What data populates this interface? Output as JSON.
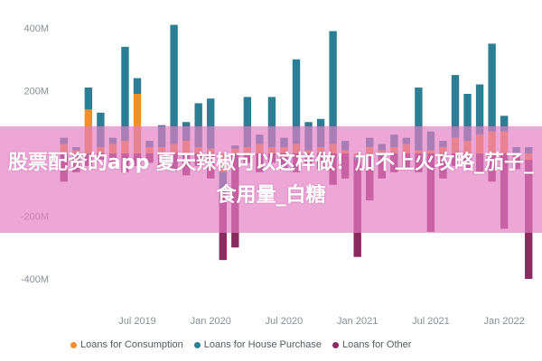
{
  "overlay": {
    "text": "股票配资的app 夏天辣椒可以这样做！加不上火攻略_茄子_食用量_白糖"
  },
  "colors": {
    "consumption": "#f28e2b",
    "house": "#2a7f94",
    "other": "#8b2a5e",
    "banner": "#e47ec4"
  },
  "chart_data": {
    "type": "bar",
    "stacked": true,
    "grid": false,
    "legend_position": "bottom",
    "ylim": [
      -450,
      480
    ],
    "yticks": [
      {
        "value": 400,
        "label": "400M"
      },
      {
        "value": 200,
        "label": "200M"
      },
      {
        "value": -200,
        "label": "-200M"
      },
      {
        "value": -400,
        "label": "-400M"
      }
    ],
    "xticks": [
      {
        "index": 6,
        "label": "Jul 2019"
      },
      {
        "index": 12,
        "label": "Jan 2020"
      },
      {
        "index": 18,
        "label": "Jul 2020"
      },
      {
        "index": 24,
        "label": "Jan 2021"
      },
      {
        "index": 30,
        "label": "Jul 2021"
      },
      {
        "index": 36,
        "label": "Jan 2022"
      }
    ],
    "categories": [
      "Jan 2019",
      "Feb 2019",
      "Mar 2019",
      "Apr 2019",
      "May 2019",
      "Jun 2019",
      "Jul 2019",
      "Aug 2019",
      "Sep 2019",
      "Oct 2019",
      "Nov 2019",
      "Dec 2019",
      "Jan 2020",
      "Feb 2020",
      "Mar 2020",
      "Apr 2020",
      "May 2020",
      "Jun 2020",
      "Jul 2020",
      "Aug 2020",
      "Sep 2020",
      "Oct 2020",
      "Nov 2020",
      "Dec 2020",
      "Jan 2021",
      "Feb 2021",
      "Mar 2021",
      "Apr 2021",
      "May 2021",
      "Jun 2021",
      "Jul 2021",
      "Aug 2021",
      "Sep 2021",
      "Oct 2021",
      "Nov 2021",
      "Dec 2021",
      "Jan 2022",
      "Feb 2022",
      "Mar 2022"
    ],
    "series": [
      {
        "name": "Loans for Consumption",
        "color": "#f28e2b",
        "values": [
          30,
          10,
          140,
          20,
          30,
          40,
          190,
          20,
          20,
          30,
          40,
          20,
          15,
          -60,
          15,
          20,
          30,
          20,
          20,
          30,
          10,
          20,
          30,
          10,
          -10,
          20,
          10,
          20,
          30,
          10,
          10,
          20,
          50,
          40,
          60,
          70,
          70,
          -10,
          -20
        ]
      },
      {
        "name": "Loans for House Purchase",
        "color": "#2a7f94",
        "values": [
          20,
          10,
          70,
          110,
          20,
          300,
          50,
          20,
          70,
          380,
          60,
          140,
          160,
          -70,
          10,
          160,
          30,
          160,
          30,
          270,
          90,
          90,
          360,
          30,
          -10,
          30,
          20,
          40,
          20,
          200,
          60,
          20,
          200,
          150,
          160,
          280,
          50,
          20,
          20
        ]
      },
      {
        "name": "Loans for Other",
        "color": "#8b2a5e",
        "values": [
          -90,
          -60,
          -40,
          -20,
          -30,
          -60,
          -40,
          -30,
          -40,
          -50,
          -70,
          -40,
          -80,
          -210,
          -300,
          -30,
          -60,
          -30,
          -50,
          -60,
          -40,
          -50,
          -100,
          -80,
          -310,
          -150,
          -80,
          -60,
          -50,
          -60,
          -250,
          -80,
          -40,
          -50,
          -60,
          -90,
          -240,
          -40,
          -380
        ]
      }
    ]
  },
  "legend": {
    "items": [
      {
        "label": "Loans for Consumption",
        "color": "#f28e2b"
      },
      {
        "label": "Loans for House Purchase",
        "color": "#2a7f94"
      },
      {
        "label": "Loans for Other",
        "color": "#8b2a5e"
      }
    ]
  }
}
